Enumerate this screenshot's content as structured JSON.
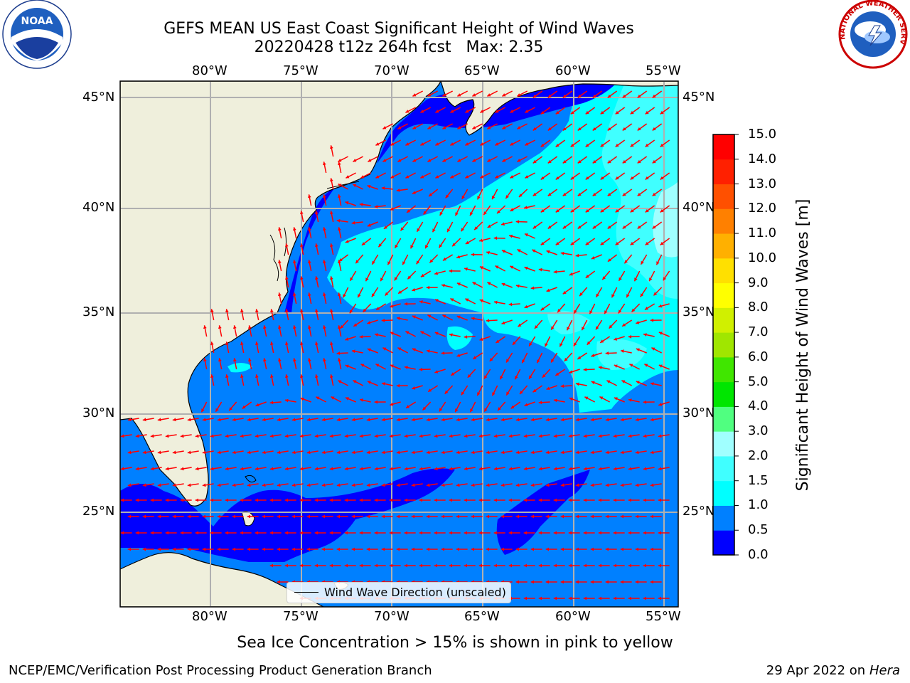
{
  "title": {
    "line1": "GEFS MEAN US East Coast Significant Height of Wind Waves",
    "line2": "20220428 t12z 264h fcst   Max: 2.35"
  },
  "logos": {
    "left": {
      "name": "noaa-logo",
      "text": "NOAA"
    },
    "right": {
      "name": "nws-logo",
      "text": "NATIONAL WEATHER SERVICE"
    }
  },
  "axes": {
    "lon_labels": [
      "80°W",
      "75°W",
      "70°W",
      "65°W",
      "60°W",
      "55°W"
    ],
    "lat_labels": [
      "45°N",
      "40°N",
      "35°N",
      "30°N",
      "25°N"
    ]
  },
  "colorbar": {
    "label": "Significant Height of Wind Waves [m]",
    "ticks": [
      "0.0",
      "0.5",
      "1.0",
      "1.5",
      "2.0",
      "3.0",
      "4.0",
      "5.0",
      "6.0",
      "7.0",
      "8.0",
      "9.0",
      "10.0",
      "11.0",
      "12.0",
      "13.0",
      "14.0",
      "15.0"
    ],
    "colors": [
      "#0000ff",
      "#0080ff",
      "#00ffff",
      "#40ffff",
      "#a0ffff",
      "#50ff80",
      "#00e600",
      "#40e600",
      "#a0e600",
      "#d0f000",
      "#ffff00",
      "#ffe000",
      "#ffb000",
      "#ff8000",
      "#ff5000",
      "#ff2000",
      "#ff0000"
    ]
  },
  "legend": {
    "label": "Wind Wave Direction (unscaled)"
  },
  "caption": "Sea Ice Concentration > 15% is shown in pink to yellow",
  "footer": {
    "left": "NCEP/EMC/Verification Post Processing Product Generation Branch",
    "right_prefix": "29 Apr 2022 on ",
    "right_host": "Hera"
  },
  "colors": {
    "land": "#efefdc",
    "ocean_deep": "#0000ff",
    "ocean_mid": "#0080ff",
    "ocean_light": "#00ffff",
    "ocean_lighter": "#40ffff",
    "ocean_pale": "#a0ffff",
    "arrow": "#ff0000",
    "grid": "#b0b0b0"
  }
}
